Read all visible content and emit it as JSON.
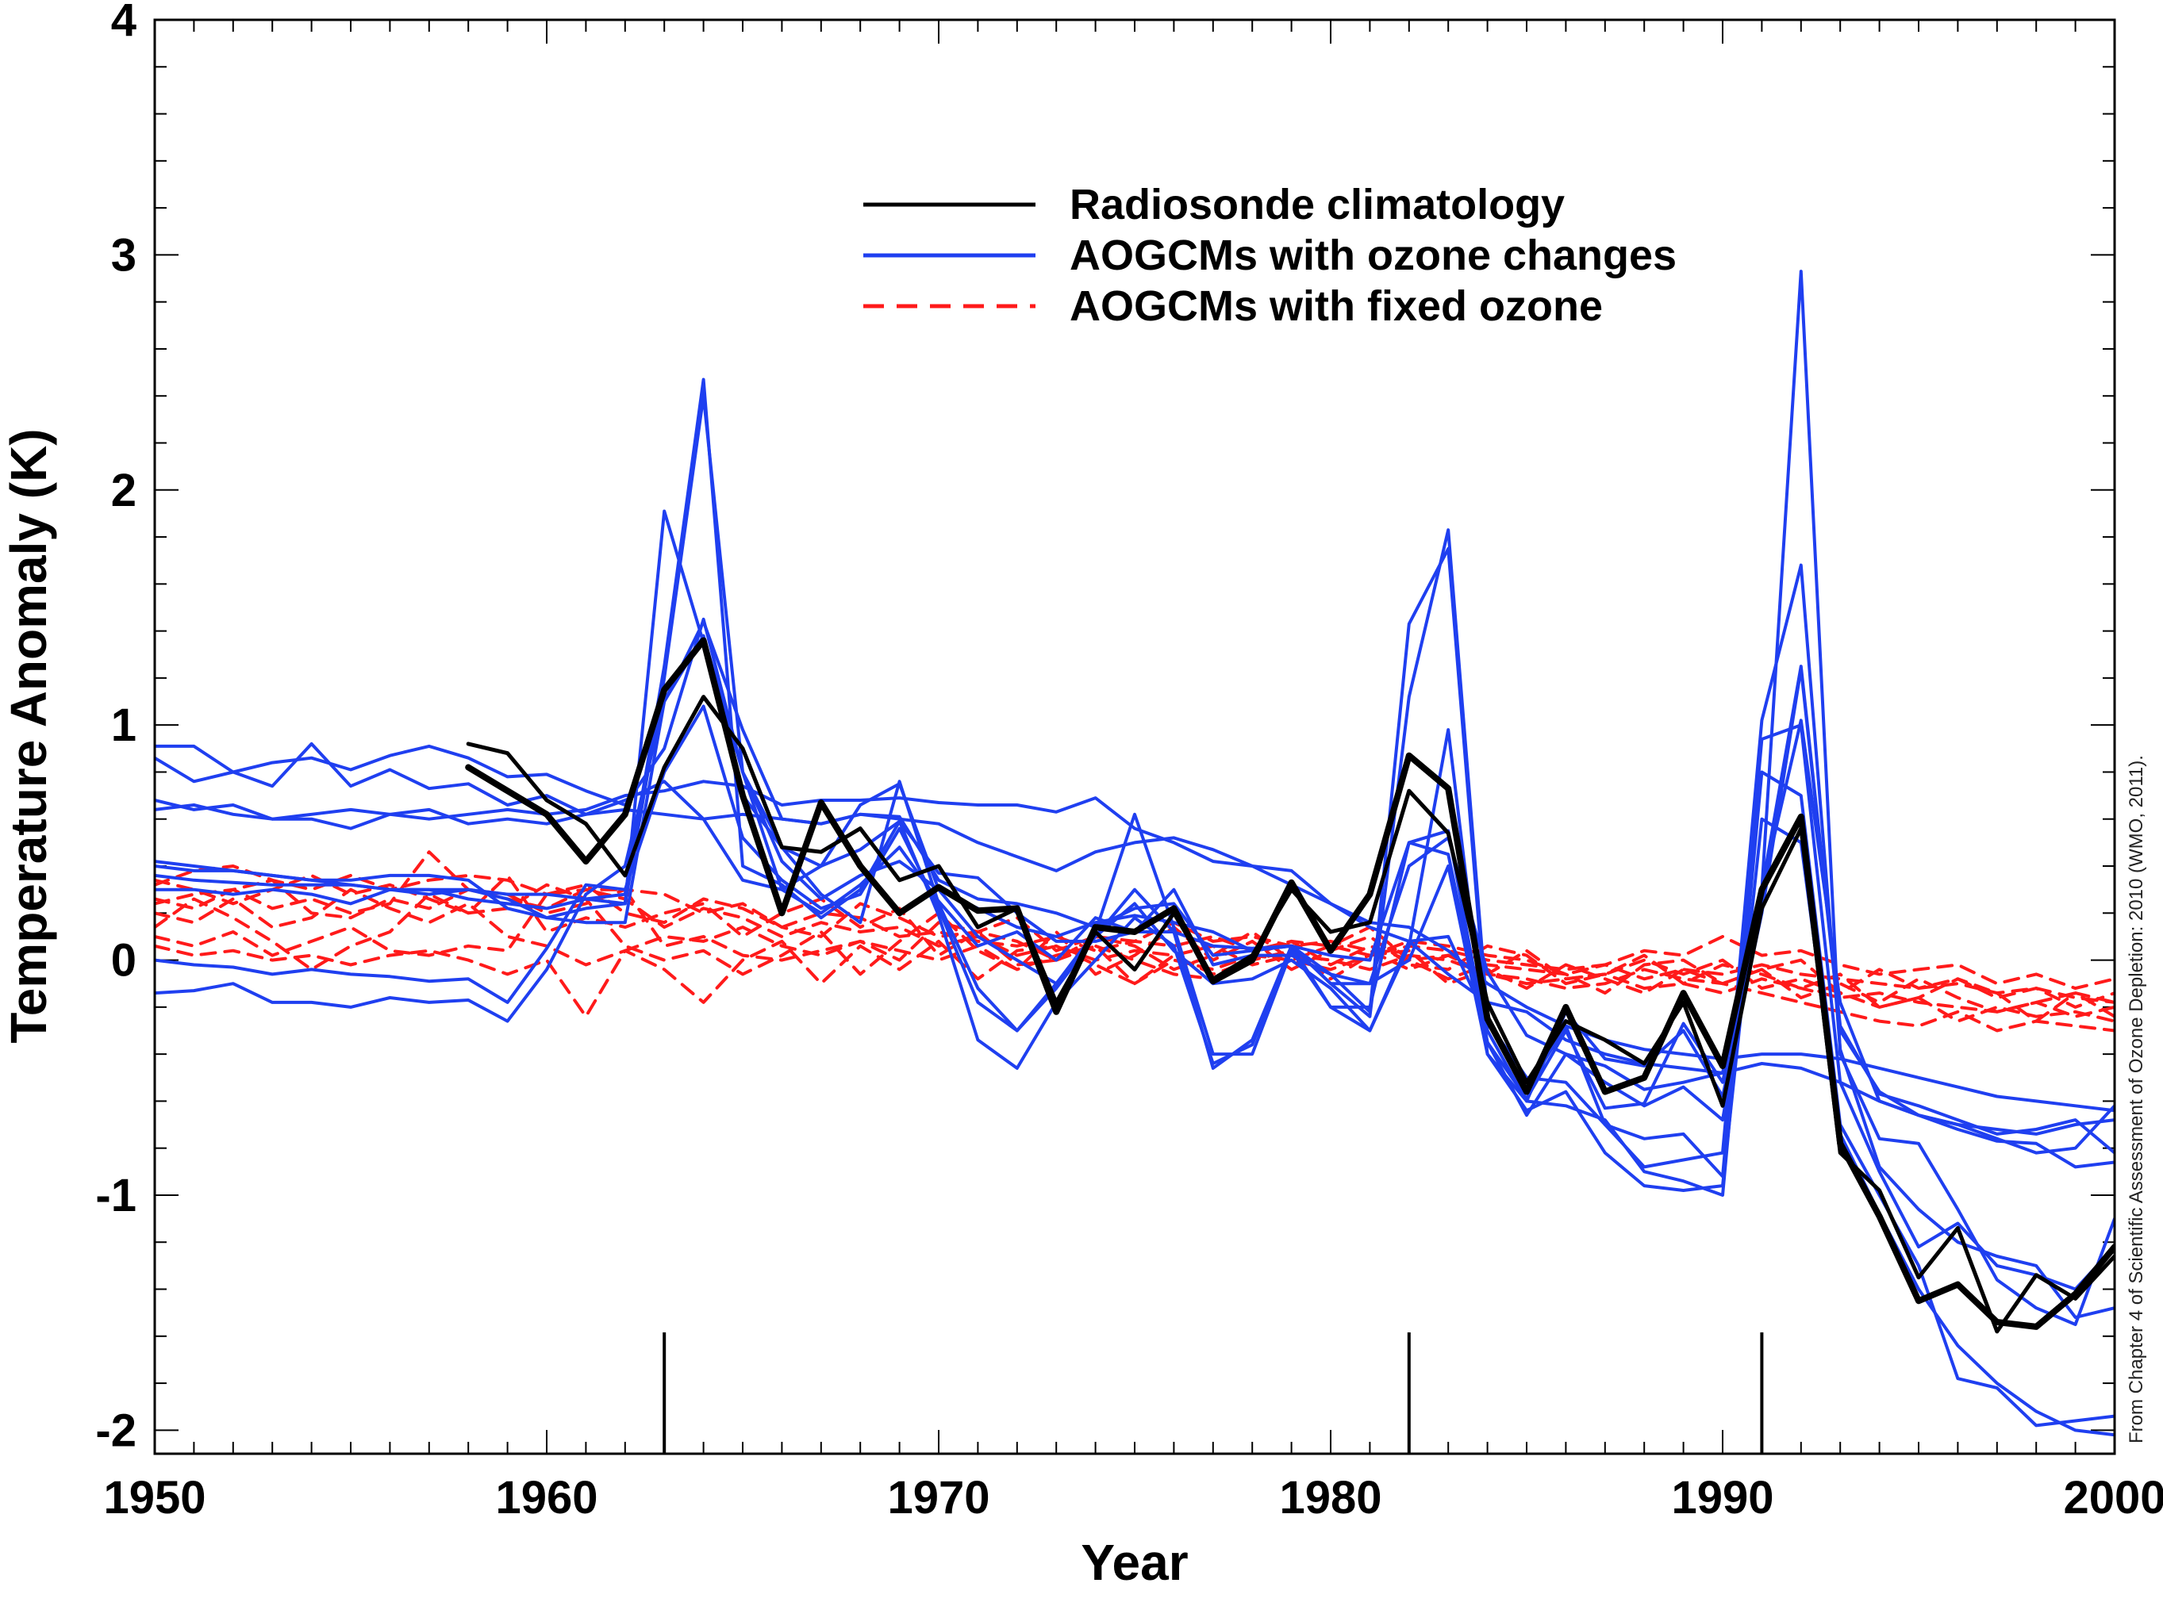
{
  "chart_data": {
    "type": "line",
    "xlabel": "Year",
    "ylabel": "Temperature Anomaly (K)",
    "xlim": [
      1950,
      2000
    ],
    "ylim": [
      -2.1,
      4
    ],
    "x_ticks": [
      "1950",
      "1960",
      "1970",
      "1980",
      "1990",
      "2000"
    ],
    "y_ticks": [
      "-2",
      "-1",
      "0",
      "1",
      "2",
      "3",
      "4"
    ],
    "legend_position": "top-center",
    "credit": "From Chapter 4 of Scientific Assessment of Ozone Depletion: 2010 (WMO, 2011).",
    "eruption_years": [
      1963,
      1982,
      1991
    ],
    "colors": {
      "radiosonde": "#000000",
      "ozone": "#1f3ff0",
      "fixed": "#ff1a1a"
    },
    "legend": [
      {
        "label": "Radiosonde climatology",
        "style": "solid",
        "color": "#000000"
      },
      {
        "label": "AOGCMs with ozone changes",
        "style": "solid",
        "color": "#1f3ff0"
      },
      {
        "label": "AOGCMs with fixed ozone",
        "style": "dashed",
        "color": "#ff1a1a"
      }
    ],
    "series": [
      {
        "group": "radiosonde",
        "width": "thick",
        "start": 1958,
        "values": [
          0.82,
          0.72,
          0.62,
          0.42,
          0.62,
          1.15,
          1.36,
          0.7,
          0.2,
          0.67,
          0.4,
          0.2,
          0.31,
          0.21,
          0.22,
          -0.22,
          0.14,
          0.12,
          0.22,
          -0.09,
          0.0,
          0.33,
          0.04,
          0.28,
          0.87,
          0.73,
          -0.25,
          -0.56,
          -0.2,
          -0.56,
          -0.5,
          -0.14,
          -0.45,
          0.3,
          0.61,
          -0.78,
          -1.09,
          -1.45,
          -1.38,
          -1.54,
          -1.56,
          -1.42,
          -1.22
        ]
      },
      {
        "group": "radiosonde",
        "width": "thin",
        "start": 1958,
        "values": [
          0.92,
          0.88,
          0.68,
          0.58,
          0.36,
          0.82,
          1.12,
          0.9,
          0.48,
          0.46,
          0.56,
          0.34,
          0.4,
          0.14,
          0.22,
          -0.18,
          0.12,
          -0.04,
          0.2,
          -0.08,
          0.02,
          0.3,
          0.12,
          0.16,
          0.72,
          0.54,
          -0.18,
          -0.52,
          -0.26,
          -0.34,
          -0.44,
          -0.18,
          -0.62,
          0.22,
          0.56,
          -0.82,
          -0.98,
          -1.35,
          -1.14,
          -1.58,
          -1.34,
          -1.44,
          -1.26
        ]
      },
      {
        "group": "ozone",
        "start": 1950,
        "values": [
          0.91,
          0.91,
          0.8,
          0.84,
          0.86,
          0.81,
          0.87,
          0.91,
          0.86,
          0.78,
          0.79,
          0.72,
          0.66,
          0.9,
          1.45,
          0.8,
          0.48,
          0.4,
          0.47,
          0.59,
          0.37,
          0.35,
          0.2,
          0.08,
          0.08,
          0.12,
          0.12,
          0.06,
          0.05,
          0.06,
          0.02,
          0.0,
          0.5,
          0.45,
          -0.35,
          -0.59,
          -0.3,
          -0.63,
          -0.61,
          -0.27,
          -0.52,
          0.3,
          1.25,
          -0.28,
          -0.57,
          -0.62,
          -0.68,
          -0.74,
          -0.72,
          -0.68,
          -0.82
        ]
      },
      {
        "group": "ozone",
        "start": 1950,
        "values": [
          0.86,
          0.76,
          0.8,
          0.74,
          0.92,
          0.74,
          0.81,
          0.73,
          0.75,
          0.66,
          0.7,
          0.62,
          0.68,
          0.76,
          0.6,
          0.34,
          0.3,
          0.4,
          0.66,
          0.75,
          0.3,
          0.22,
          0.14,
          0.1,
          0.16,
          0.19,
          0.16,
          0.12,
          0.04,
          0.06,
          -0.1,
          -0.1,
          0.4,
          0.52,
          -0.05,
          -0.32,
          -0.4,
          -0.45,
          -0.55,
          -0.52,
          -0.48,
          0.3,
          1.02,
          -0.18,
          -0.6,
          -0.66,
          -0.72,
          -0.77,
          -0.78,
          -0.88,
          -0.86
        ]
      },
      {
        "group": "ozone",
        "start": 1950,
        "values": [
          0.68,
          0.64,
          0.66,
          0.6,
          0.62,
          0.64,
          0.62,
          0.6,
          0.62,
          0.64,
          0.62,
          0.64,
          0.7,
          0.72,
          0.76,
          0.74,
          0.66,
          0.68,
          0.68,
          0.69,
          0.67,
          0.66,
          0.66,
          0.63,
          0.69,
          0.56,
          0.5,
          0.42,
          0.4,
          0.32,
          0.24,
          0.16,
          0.14,
          0.04,
          -0.1,
          -0.2,
          -0.28,
          -0.34,
          -0.38,
          -0.4,
          -0.42,
          -0.4,
          -0.4,
          -0.42,
          -0.46,
          -0.5,
          -0.54,
          -0.58,
          -0.6,
          -0.62,
          -0.64
        ]
      },
      {
        "group": "ozone",
        "start": 1950,
        "values": [
          0.64,
          0.66,
          0.62,
          0.6,
          0.6,
          0.56,
          0.62,
          0.64,
          0.58,
          0.6,
          0.58,
          0.62,
          0.64,
          0.62,
          0.6,
          0.62,
          0.6,
          0.58,
          0.62,
          0.6,
          0.58,
          0.5,
          0.44,
          0.38,
          0.46,
          0.5,
          0.52,
          0.47,
          0.4,
          0.38,
          0.24,
          0.14,
          0.08,
          -0.06,
          -0.18,
          -0.22,
          -0.34,
          -0.4,
          -0.44,
          -0.46,
          -0.48,
          -0.44,
          -0.46,
          -0.52,
          -0.6,
          -0.66,
          -0.7,
          -0.72,
          -0.74,
          -0.7,
          -0.68
        ]
      },
      {
        "group": "ozone",
        "start": 1950,
        "values": [
          0.4,
          0.38,
          0.38,
          0.36,
          0.34,
          0.32,
          0.3,
          0.28,
          0.3,
          0.26,
          0.18,
          0.22,
          0.24,
          1.91,
          1.35,
          0.7,
          0.48,
          0.28,
          0.16,
          0.76,
          0.24,
          -0.12,
          -0.3,
          -0.12,
          0.1,
          0.24,
          0.04,
          -0.1,
          -0.08,
          0.0,
          -0.12,
          -0.3,
          0.08,
          0.1,
          -0.26,
          -0.5,
          -0.52,
          -0.7,
          -0.88,
          -0.85,
          -0.82,
          1.02,
          1.68,
          -0.38,
          -0.88,
          -1.06,
          -1.2,
          -1.26,
          -1.3,
          -1.52,
          -1.48
        ]
      },
      {
        "group": "ozone",
        "start": 1950,
        "values": [
          0.36,
          0.34,
          0.33,
          0.32,
          0.32,
          0.32,
          0.3,
          0.3,
          0.3,
          0.28,
          0.28,
          0.26,
          0.28,
          1.25,
          2.47,
          0.4,
          0.32,
          0.18,
          0.3,
          0.59,
          0.19,
          -0.34,
          -0.46,
          -0.18,
          0.0,
          0.18,
          0.06,
          -0.44,
          -0.36,
          0.06,
          -0.2,
          -0.2,
          0.5,
          0.55,
          -0.35,
          -0.66,
          -0.4,
          -0.52,
          -0.62,
          -0.54,
          -0.68,
          0.3,
          2.93,
          -0.4,
          -0.76,
          -0.78,
          -1.06,
          -1.36,
          -1.48,
          -1.55,
          -1.1
        ]
      },
      {
        "group": "ozone",
        "start": 1950,
        "values": [
          0.3,
          0.3,
          0.28,
          0.3,
          0.28,
          0.24,
          0.3,
          0.3,
          0.26,
          0.24,
          0.22,
          0.26,
          0.24,
          1.2,
          2.4,
          0.8,
          0.3,
          0.2,
          0.32,
          0.48,
          0.25,
          0.06,
          0.12,
          0.0,
          0.18,
          0.12,
          0.3,
          -0.02,
          0.02,
          0.02,
          -0.06,
          -0.22,
          1.43,
          1.75,
          -0.3,
          -0.6,
          -0.22,
          -0.42,
          -0.45,
          -0.3,
          -0.58,
          0.2,
          1.24,
          -0.3,
          -0.56,
          -0.66,
          -0.7,
          -0.76,
          -0.82,
          -0.8,
          -0.62
        ]
      },
      {
        "group": "ozone",
        "start": 1950,
        "values": [
          0.42,
          0.4,
          0.38,
          0.36,
          0.34,
          0.34,
          0.36,
          0.36,
          0.34,
          0.22,
          0.18,
          0.16,
          0.16,
          1.1,
          1.44,
          0.98,
          0.6,
          0.58,
          0.62,
          0.61,
          0.34,
          0.26,
          0.24,
          0.2,
          0.14,
          0.22,
          0.24,
          0.02,
          0.04,
          0.06,
          -0.1,
          -0.24,
          1.12,
          1.83,
          -0.24,
          -0.55,
          -0.28,
          -0.7,
          -0.76,
          -0.74,
          -0.92,
          0.94,
          1.0,
          -0.52,
          -0.9,
          -1.22,
          -1.12,
          -1.3,
          -1.34,
          -1.4,
          -1.22
        ]
      },
      {
        "group": "ozone",
        "start": 1950,
        "values": [
          0.0,
          -0.02,
          -0.03,
          -0.06,
          -0.04,
          -0.06,
          -0.07,
          -0.09,
          -0.08,
          -0.18,
          0.05,
          0.32,
          0.3,
          0.8,
          1.08,
          0.52,
          0.34,
          0.22,
          0.28,
          0.56,
          0.22,
          -0.18,
          -0.3,
          -0.1,
          0.12,
          0.62,
          0.14,
          -0.4,
          -0.4,
          0.04,
          -0.2,
          -0.3,
          0.06,
          0.98,
          -0.4,
          -0.6,
          -0.62,
          -0.68,
          -0.9,
          -0.94,
          -1.0,
          0.8,
          0.7,
          -0.7,
          -1.0,
          -1.3,
          -1.78,
          -1.82,
          -1.98,
          -1.96,
          -1.94
        ]
      },
      {
        "group": "ozone",
        "start": 1950,
        "values": [
          -0.14,
          -0.13,
          -0.1,
          -0.18,
          -0.18,
          -0.2,
          -0.16,
          -0.18,
          -0.17,
          -0.26,
          -0.04,
          0.28,
          0.4,
          1.1,
          1.38,
          0.8,
          0.42,
          0.26,
          0.36,
          0.42,
          0.3,
          0.1,
          0.0,
          -0.1,
          0.1,
          0.3,
          0.12,
          -0.46,
          -0.34,
          0.06,
          -0.06,
          -0.1,
          0.0,
          0.4,
          -0.4,
          -0.64,
          -0.56,
          -0.82,
          -0.96,
          -0.98,
          -0.96,
          0.6,
          0.5,
          -0.74,
          -1.08,
          -1.4,
          -1.64,
          -1.8,
          -1.92,
          -2.0,
          -2.02
        ]
      },
      {
        "group": "fixed",
        "start": 1950,
        "values": [
          0.32,
          0.38,
          0.4,
          0.34,
          0.3,
          0.36,
          0.3,
          0.34,
          0.36,
          0.34,
          0.28,
          0.32,
          0.2,
          0.16,
          0.26,
          0.22,
          0.14,
          0.2,
          0.18,
          0.1,
          0.12,
          0.08,
          0.06,
          0.1,
          0.04,
          0.08,
          0.06,
          0.1,
          0.04,
          0.08,
          0.06,
          0.02,
          0.06,
          0.04,
          0.0,
          -0.02,
          -0.04,
          -0.02,
          -0.08,
          -0.04,
          -0.06,
          -0.02,
          -0.06,
          -0.08,
          -0.1,
          -0.12,
          -0.1,
          -0.14,
          -0.12,
          -0.16,
          -0.18
        ]
      },
      {
        "group": "fixed",
        "start": 1950,
        "values": [
          0.24,
          0.28,
          0.3,
          0.22,
          0.26,
          0.2,
          0.24,
          0.46,
          0.3,
          0.26,
          0.22,
          0.3,
          0.26,
          0.14,
          0.22,
          0.18,
          0.1,
          0.16,
          0.12,
          0.14,
          0.06,
          0.1,
          0.02,
          0.06,
          0.0,
          0.04,
          0.02,
          0.06,
          -0.02,
          0.02,
          0.0,
          -0.04,
          0.02,
          0.0,
          -0.06,
          -0.1,
          -0.08,
          -0.06,
          -0.12,
          -0.1,
          -0.14,
          -0.08,
          -0.12,
          -0.16,
          -0.14,
          -0.18,
          -0.2,
          -0.22,
          -0.18,
          -0.24,
          -0.2
        ]
      },
      {
        "group": "fixed",
        "start": 1950,
        "values": [
          0.1,
          0.06,
          0.12,
          0.02,
          0.08,
          0.14,
          0.04,
          0.02,
          0.06,
          0.04,
          0.28,
          0.3,
          0.3,
          0.06,
          0.1,
          0.02,
          0.0,
          0.04,
          0.08,
          0.0,
          0.16,
          0.12,
          0.18,
          0.04,
          0.1,
          0.08,
          0.16,
          0.08,
          0.1,
          0.06,
          0.08,
          0.04,
          -0.04,
          0.02,
          -0.06,
          -0.08,
          -0.12,
          -0.1,
          -0.04,
          -0.08,
          -0.1,
          -0.14,
          -0.18,
          -0.22,
          -0.26,
          -0.28,
          -0.22,
          -0.3,
          -0.26,
          -0.28,
          -0.3
        ]
      },
      {
        "group": "fixed",
        "start": 1950,
        "values": [
          0.06,
          0.02,
          0.04,
          0.0,
          0.02,
          -0.02,
          0.02,
          0.04,
          0.0,
          -0.06,
          0.0,
          -0.24,
          0.04,
          0.1,
          0.08,
          0.14,
          0.06,
          0.02,
          0.08,
          0.04,
          0.0,
          0.06,
          -0.04,
          0.02,
          0.06,
          0.0,
          -0.06,
          -0.08,
          0.02,
          0.0,
          -0.04,
          0.02,
          0.08,
          0.06,
          0.02,
          0.0,
          -0.06,
          -0.02,
          0.04,
          0.02,
          0.1,
          0.02,
          0.04,
          -0.02,
          -0.06,
          -0.04,
          -0.02,
          -0.1,
          -0.06,
          -0.12,
          -0.08
        ]
      },
      {
        "group": "fixed",
        "start": 1950,
        "values": [
          0.26,
          0.22,
          0.3,
          0.34,
          0.2,
          0.18,
          0.26,
          0.22,
          0.3,
          0.28,
          0.2,
          0.24,
          0.3,
          0.28,
          0.2,
          0.24,
          0.14,
          0.1,
          0.24,
          0.18,
          0.1,
          0.12,
          0.08,
          0.0,
          0.06,
          -0.1,
          0.0,
          -0.04,
          0.02,
          0.08,
          -0.02,
          0.06,
          0.0,
          -0.08,
          -0.02,
          -0.04,
          -0.06,
          -0.14,
          -0.02,
          0.0,
          -0.1,
          -0.04,
          0.0,
          -0.14,
          -0.2,
          -0.16,
          -0.26,
          -0.2,
          -0.24,
          -0.22,
          -0.26
        ]
      },
      {
        "group": "fixed",
        "start": 1950,
        "values": [
          0.34,
          0.3,
          0.24,
          0.3,
          0.36,
          0.28,
          0.32,
          0.26,
          0.2,
          0.22,
          0.32,
          0.26,
          0.06,
          0.0,
          0.04,
          -0.06,
          0.02,
          0.12,
          -0.06,
          0.08,
          0.2,
          0.04,
          -0.04,
          0.12,
          -0.06,
          0.02,
          0.14,
          0.0,
          0.08,
          -0.04,
          0.04,
          0.1,
          -0.02,
          -0.04,
          0.06,
          0.02,
          -0.1,
          -0.06,
          0.0,
          -0.06,
          0.0,
          -0.12,
          -0.08,
          -0.14,
          -0.04,
          -0.12,
          -0.08,
          -0.16,
          -0.12,
          -0.2,
          -0.14
        ]
      },
      {
        "group": "fixed",
        "start": 1950,
        "values": [
          0.2,
          0.16,
          0.26,
          0.14,
          0.18,
          0.3,
          0.22,
          0.16,
          0.24,
          0.1,
          0.06,
          -0.02,
          0.04,
          -0.04,
          -0.18,
          0.0,
          0.08,
          -0.1,
          0.06,
          -0.04,
          0.08,
          -0.08,
          0.04,
          0.06,
          -0.02,
          -0.1,
          0.02,
          -0.06,
          0.0,
          0.04,
          -0.08,
          0.02,
          0.04,
          -0.1,
          -0.04,
          -0.12,
          -0.02,
          -0.08,
          -0.14,
          -0.04,
          -0.1,
          -0.04,
          -0.16,
          -0.1,
          -0.18,
          -0.08,
          -0.16,
          -0.22,
          -0.18,
          -0.14,
          -0.24
        ]
      },
      {
        "group": "fixed",
        "start": 1950,
        "values": [
          0.14,
          0.26,
          0.18,
          0.08,
          -0.04,
          0.06,
          0.12,
          0.28,
          0.2,
          0.36,
          0.12,
          0.18,
          0.14,
          0.2,
          0.24,
          0.1,
          0.2,
          0.26,
          0.14,
          0.22,
          0.02,
          0.12,
          -0.02,
          0.0,
          0.1,
          0.06,
          -0.04,
          0.02,
          0.12,
          0.0,
          0.06,
          0.14,
          0.0,
          0.02,
          -0.06,
          0.04,
          -0.08,
          -0.06,
          0.02,
          -0.1,
          -0.02,
          -0.06,
          -0.12,
          -0.06,
          -0.2,
          -0.16,
          -0.08,
          -0.14,
          -0.26,
          -0.14,
          -0.18
        ]
      }
    ]
  }
}
